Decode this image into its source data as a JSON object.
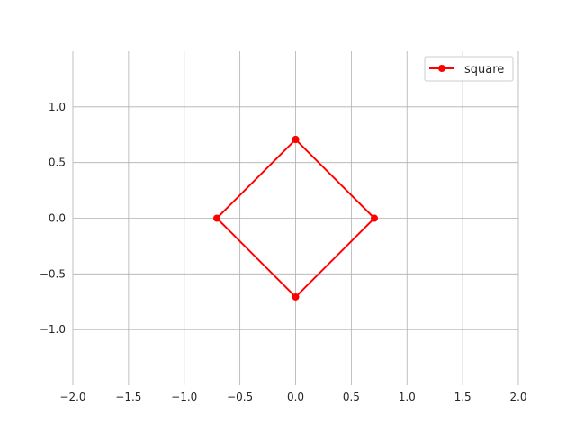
{
  "chart_data": {
    "type": "line",
    "title": "",
    "xlabel": "",
    "ylabel": "",
    "xlim": [
      -2.0,
      2.0
    ],
    "ylim": [
      -1.5,
      1.5
    ],
    "x_ticks": [
      -2.0,
      -1.5,
      -1.0,
      -0.5,
      0.0,
      0.5,
      1.0,
      1.5,
      2.0
    ],
    "y_ticks": [
      -1.0,
      -0.5,
      0.0,
      0.5,
      1.0
    ],
    "x_tick_labels": [
      "−2.0",
      "−1.5",
      "−1.0",
      "−0.5",
      "0.0",
      "0.5",
      "1.0",
      "1.5",
      "2.0"
    ],
    "y_tick_labels": [
      "−1.0",
      "−0.5",
      "0.0",
      "0.5",
      "1.0"
    ],
    "grid": true,
    "legend": {
      "position": "top-right"
    },
    "series": [
      {
        "name": "square",
        "color": "#ff0000",
        "marker": "circle",
        "x": [
          0.0,
          0.7071,
          0.0,
          -0.7071,
          0.0
        ],
        "y": [
          0.7071,
          0.0,
          -0.7071,
          0.0,
          0.7071
        ]
      }
    ]
  }
}
